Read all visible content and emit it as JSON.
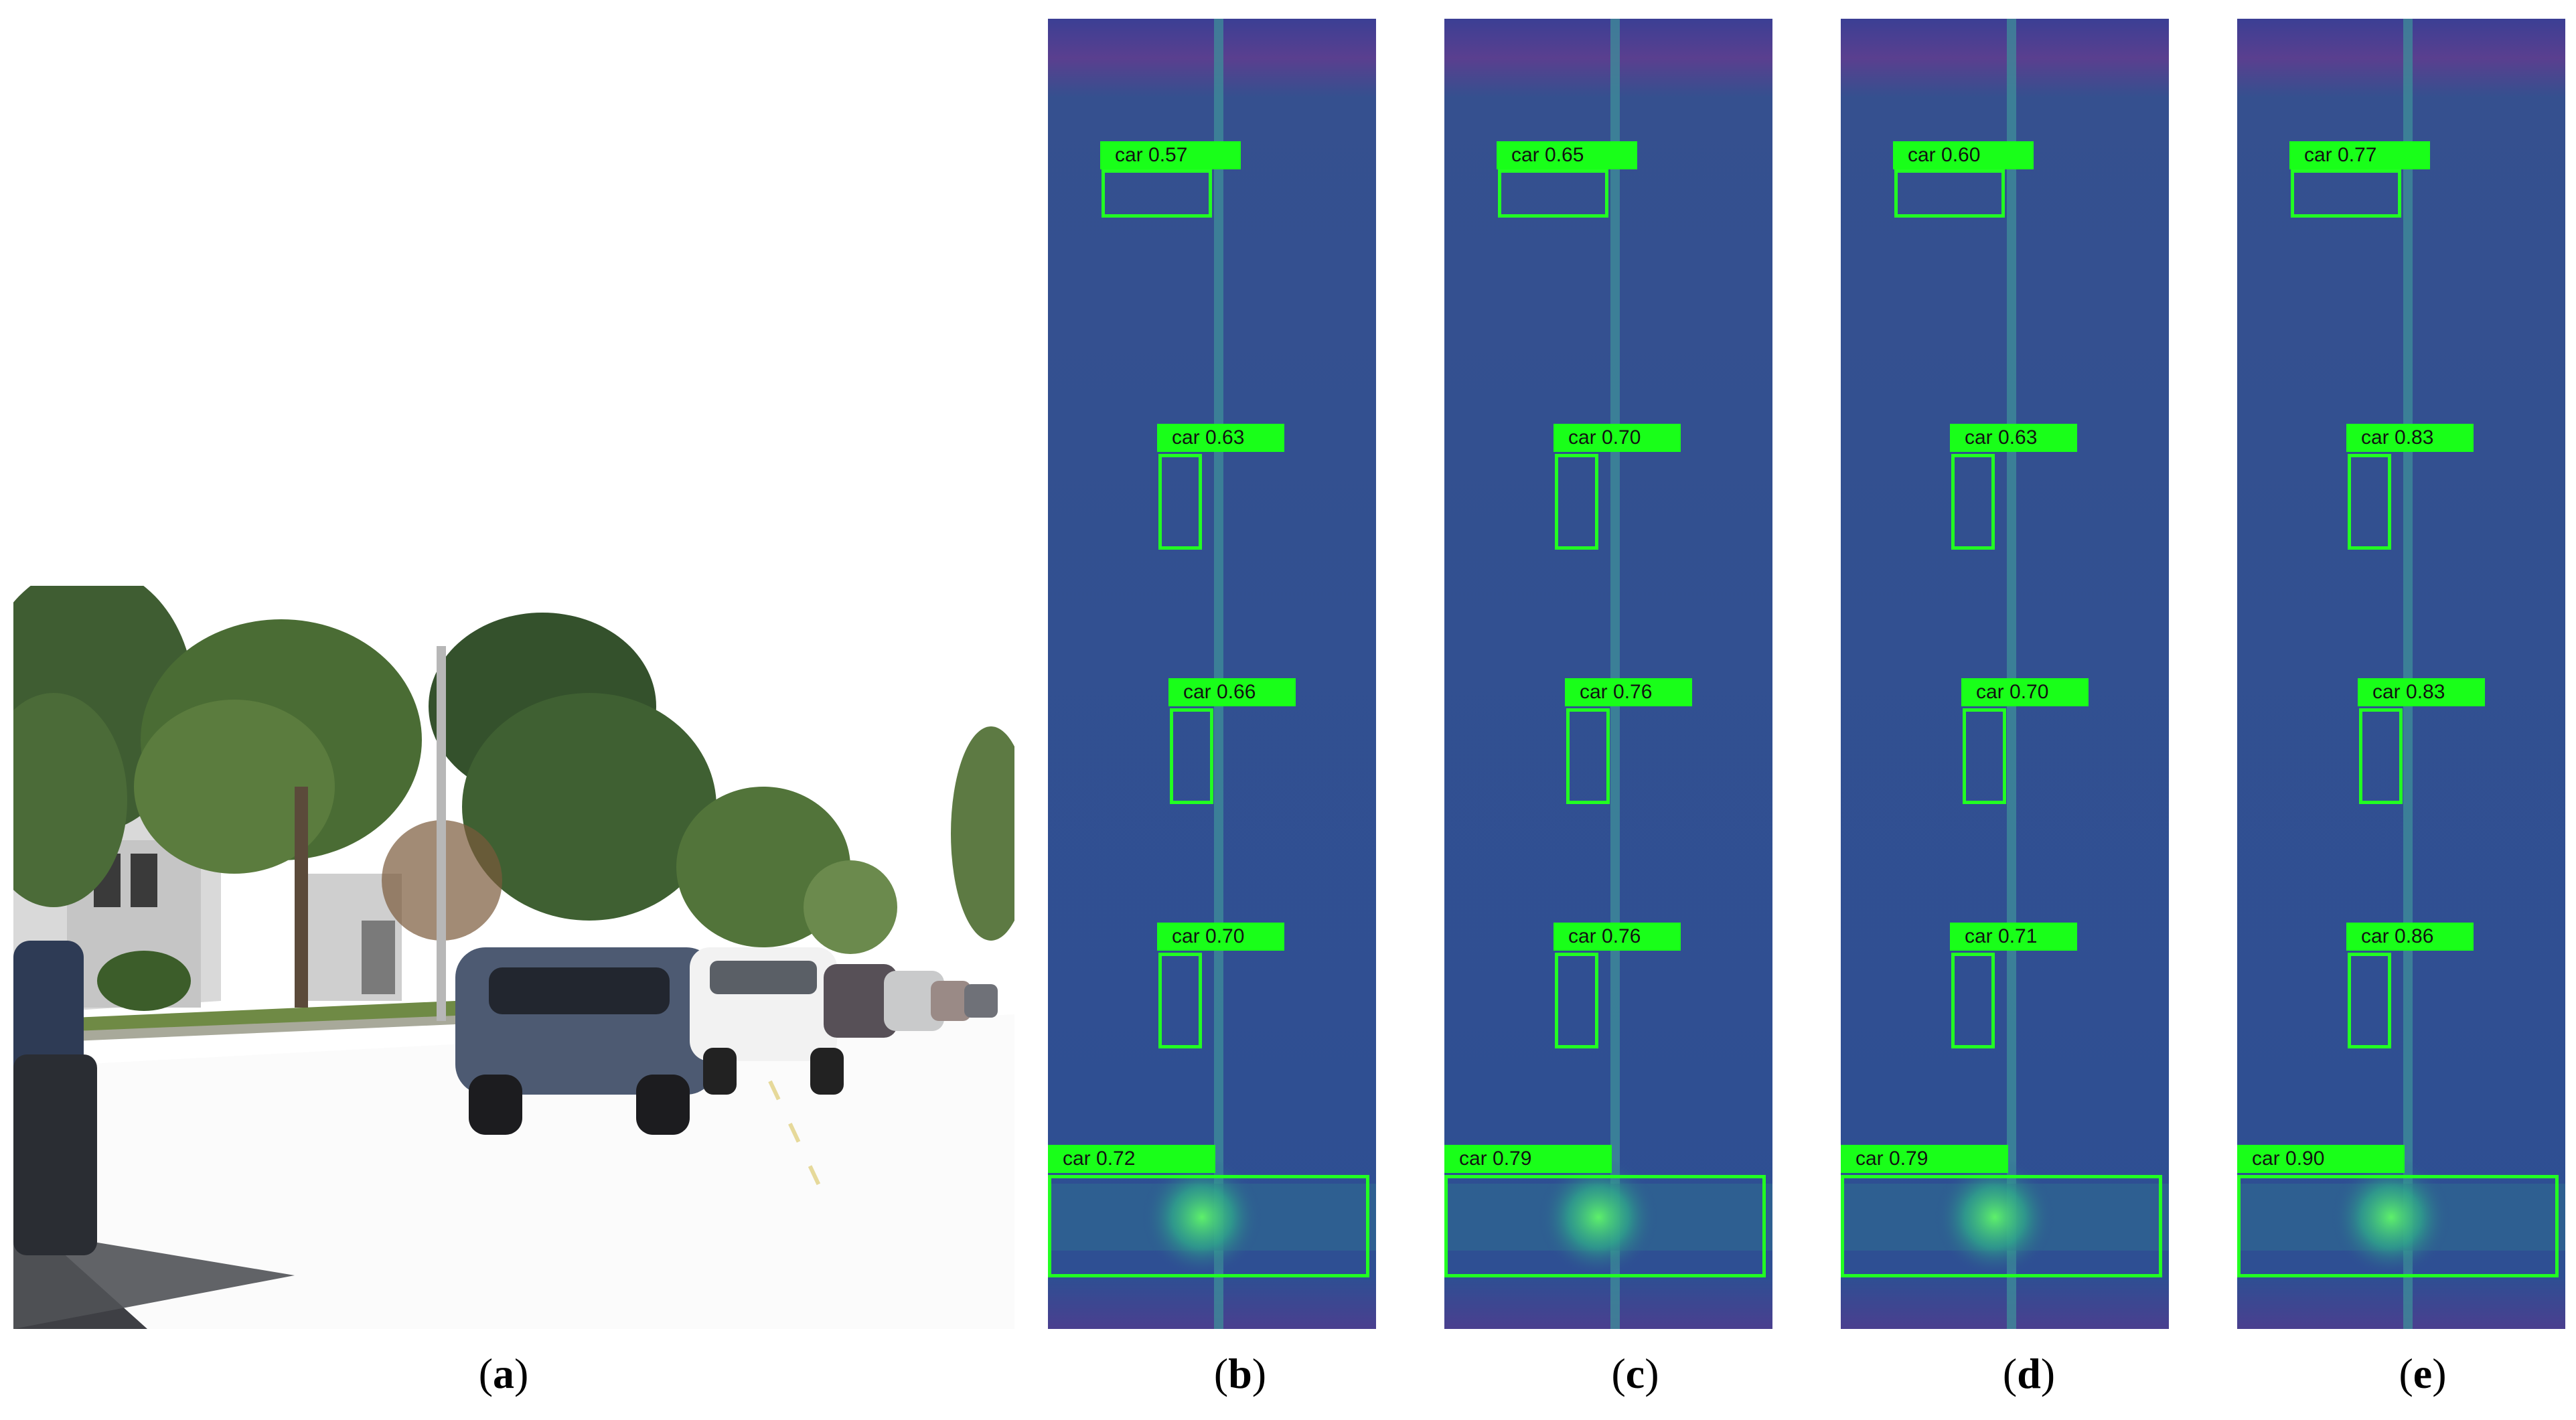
{
  "figure": {
    "panels": [
      {
        "id": "a",
        "kind": "camera-photo",
        "caption": {
          "open": "(",
          "letter": "a",
          "close": ")"
        }
      },
      {
        "id": "b",
        "kind": "radar-heatmap",
        "caption": {
          "open": "(",
          "letter": "b",
          "close": ")"
        },
        "detections": [
          {
            "label": "car 0.57"
          },
          {
            "label": "car 0.63"
          },
          {
            "label": "car 0.66"
          },
          {
            "label": "car 0.70"
          },
          {
            "label": "car 0.72"
          }
        ]
      },
      {
        "id": "c",
        "kind": "radar-heatmap",
        "caption": {
          "open": "(",
          "letter": "c",
          "close": ")"
        },
        "detections": [
          {
            "label": "car 0.65"
          },
          {
            "label": "car 0.70"
          },
          {
            "label": "car 0.76"
          },
          {
            "label": "car 0.76"
          },
          {
            "label": "car 0.79"
          }
        ]
      },
      {
        "id": "d",
        "kind": "radar-heatmap",
        "caption": {
          "open": "(",
          "letter": "d",
          "close": ")"
        },
        "detections": [
          {
            "label": "car 0.60"
          },
          {
            "label": "car 0.63"
          },
          {
            "label": "car 0.70"
          },
          {
            "label": "car 0.71"
          },
          {
            "label": "car 0.79"
          }
        ]
      },
      {
        "id": "e",
        "kind": "radar-heatmap",
        "caption": {
          "open": "(",
          "letter": "e",
          "close": ")"
        },
        "detections": [
          {
            "label": "car 0.77"
          },
          {
            "label": "car 0.83"
          },
          {
            "label": "car 0.83"
          },
          {
            "label": "car 0.86"
          },
          {
            "label": "car 0.90"
          }
        ]
      }
    ],
    "colors": {
      "detection_box": "#22ff22",
      "detection_label_bg": "#19ff19",
      "heatmap_base": "#2e4f93",
      "heatmap_top_band": "#5a3f8f"
    }
  }
}
